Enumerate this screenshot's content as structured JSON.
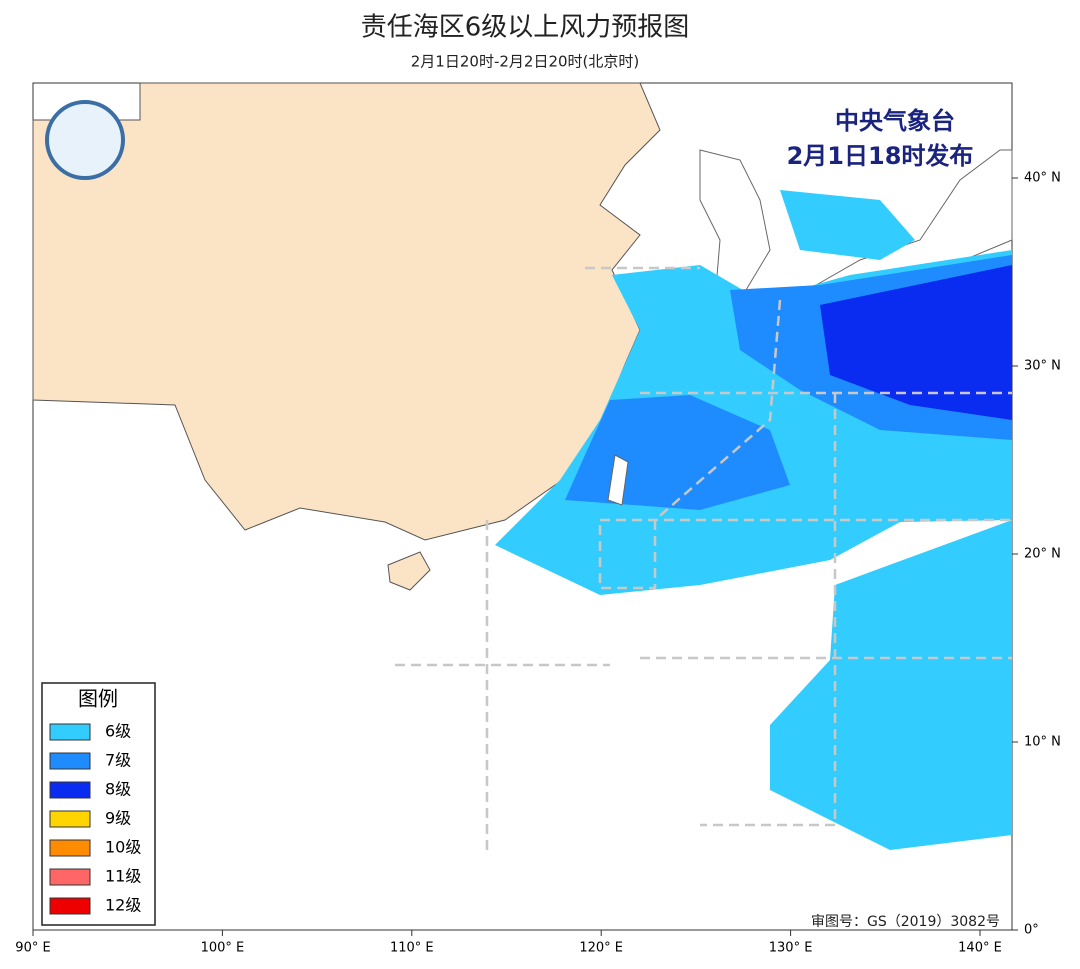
{
  "header": {
    "title": "责任海区6级以上风力预报图",
    "subtitle": "2月1日20时-2月2日20时(北京时)"
  },
  "issuer": {
    "line1": "中央气象台",
    "line2": "2月1日18时发布"
  },
  "legend": {
    "title": "图例",
    "items": [
      {
        "label": "6级",
        "color": "#33ccff"
      },
      {
        "label": "7级",
        "color": "#1e8cff"
      },
      {
        "label": "8级",
        "color": "#0a2cf0"
      },
      {
        "label": "9级",
        "color": "#ffd400"
      },
      {
        "label": "10级",
        "color": "#ff8c00"
      },
      {
        "label": "11级",
        "color": "#ff6666"
      },
      {
        "label": "12级",
        "color": "#ee0000"
      }
    ]
  },
  "map": {
    "lon_ticks": [
      {
        "value": 90,
        "label": "90° E"
      },
      {
        "value": 100,
        "label": "100° E"
      },
      {
        "value": 110,
        "label": "110° E"
      },
      {
        "value": 120,
        "label": "120° E"
      },
      {
        "value": 130,
        "label": "130° E"
      },
      {
        "value": 140,
        "label": "140° E"
      }
    ],
    "lat_ticks": [
      {
        "value": 40,
        "label": "40° N"
      },
      {
        "value": 30,
        "label": "30° N"
      },
      {
        "value": 20,
        "label": "20° N"
      },
      {
        "value": 10,
        "label": "10° N"
      },
      {
        "value": 0,
        "label": "0°"
      }
    ]
  },
  "review_number": "审图号：GS（2019）3082号"
}
